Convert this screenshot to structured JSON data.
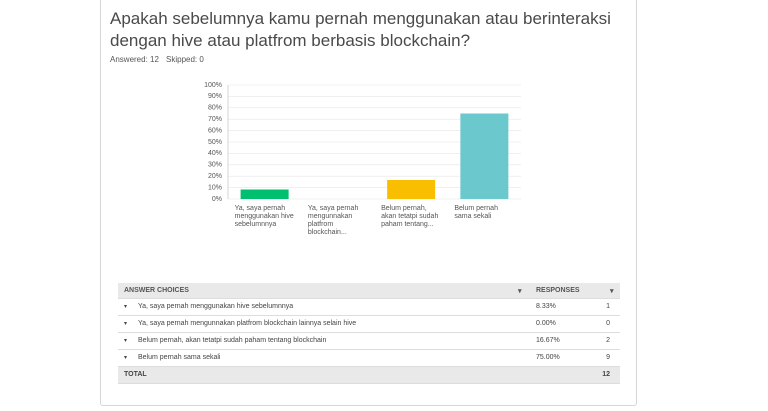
{
  "question": "Apakah sebelumnya kamu pernah menggunakan atau berinteraksi dengan hive atau platfrom berbasis blockchain?",
  "answered": "Answered: 12",
  "skipped": "Skipped: 0",
  "chart_data": {
    "type": "bar",
    "categories": [
      "Ya, saya pernah menggunakan hive sebelumnnya",
      "Ya, saya pernah mengunnakan platfrom blockchain...",
      "Belum pernah, akan tetatpi sudah paham tentang...",
      "Belum pernah sama sekali"
    ],
    "values": [
      8.33,
      0,
      16.67,
      75
    ],
    "colors": [
      "#00bf6f",
      "#507cb6",
      "#f9be00",
      "#6bc8cd"
    ],
    "ylim": [
      0,
      100
    ],
    "yticks": [
      {
        "value": 0,
        "label": "0%"
      },
      {
        "value": 10,
        "label": "10%"
      },
      {
        "value": 20,
        "label": "20%"
      },
      {
        "value": 30,
        "label": "30%"
      },
      {
        "value": 40,
        "label": "40%"
      },
      {
        "value": 50,
        "label": "50%"
      },
      {
        "value": 60,
        "label": "60%"
      },
      {
        "value": 70,
        "label": "70%"
      },
      {
        "value": 80,
        "label": "80%"
      },
      {
        "value": 90,
        "label": "90%"
      },
      {
        "value": 100,
        "label": "100%"
      }
    ],
    "grid": true
  },
  "table": {
    "headers": [
      "ANSWER CHOICES",
      "RESPONSES"
    ],
    "rows": [
      [
        "Ya, saya pernah menggunakan hive sebelumnnya",
        "8.33%",
        1
      ],
      [
        "Ya, saya pernah mengunnakan platfrom blockchain lainnya selain hive",
        "0.00%",
        0
      ],
      [
        "Belum pernah, akan tetatpi sudah paham tentang blockchain",
        "16.67%",
        2
      ],
      [
        "Belum pernah sama sekali",
        "75.00%",
        9
      ]
    ],
    "total": [
      "TOTAL",
      12
    ]
  }
}
